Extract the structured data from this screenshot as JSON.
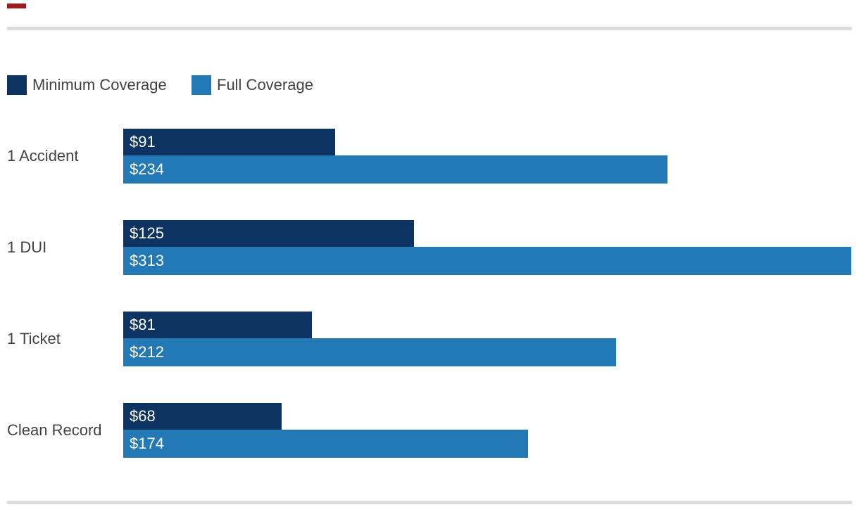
{
  "marker": {
    "name": "red-dash",
    "color": "#9b1c1c"
  },
  "dividers": {
    "color": "#dcdcdc"
  },
  "legend": {
    "items": [
      {
        "label": "Minimum Coverage",
        "color": "#0c3361"
      },
      {
        "label": "Full Coverage",
        "color": "#2379b6"
      }
    ]
  },
  "chart_data": {
    "type": "bar",
    "orientation": "horizontal",
    "title": "",
    "xlabel": "",
    "ylabel": "",
    "categories": [
      "1 Accident",
      "1 DUI",
      "1 Ticket",
      "Clean Record"
    ],
    "series": [
      {
        "name": "Minimum Coverage",
        "color": "#0c3361",
        "values": [
          91,
          125,
          81,
          68
        ],
        "labels": [
          "$91",
          "$125",
          "$81",
          "$68"
        ]
      },
      {
        "name": "Full Coverage",
        "color": "#2379b6",
        "values": [
          234,
          313,
          212,
          174
        ],
        "labels": [
          "$234",
          "$313",
          "$212",
          "$174"
        ]
      }
    ],
    "xlim": [
      0,
      313
    ],
    "value_prefix": "$",
    "grid": false,
    "legend_position": "top-left",
    "value_labels_inside_bars": true
  }
}
